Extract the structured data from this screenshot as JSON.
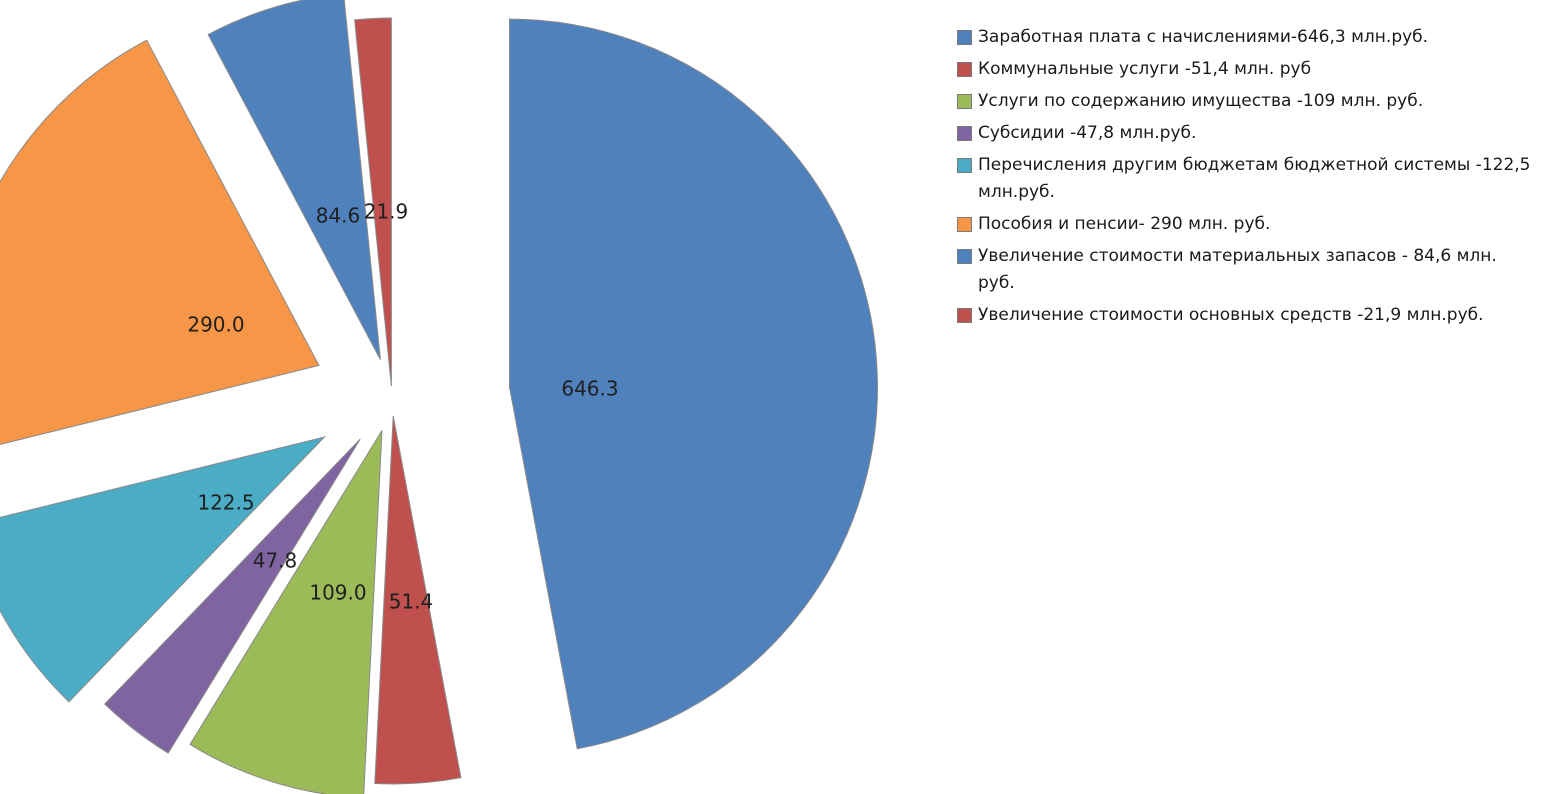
{
  "chart_data": {
    "type": "pie",
    "exploded": true,
    "legend_position": "right",
    "slices": [
      {
        "label": "Заработная плата с начислениями-646,3 млн.руб.",
        "value": 646.3,
        "data_label": "646.3",
        "color": "#4f81bd"
      },
      {
        "label": "Коммунальные услуги -51,4 млн. руб",
        "value": 51.4,
        "data_label": "51.4",
        "color": "#c0504d"
      },
      {
        "label": "Услуги по содержанию имущества -109 млн. руб.",
        "value": 109.0,
        "data_label": "109.0",
        "color": "#9bbb59"
      },
      {
        "label": "Субсидии  -47,8 млн.руб.",
        "value": 47.8,
        "data_label": "47.8",
        "color": "#8064a2"
      },
      {
        "label": "Перечисления другим бюджетам бюджетной системы -122,5 млн.руб.",
        "value": 122.5,
        "data_label": "122.5",
        "color": "#4bacc6"
      },
      {
        "label": "Пособия и пенсии- 290 млн. руб.",
        "value": 290.0,
        "data_label": "290.0",
        "color": "#f79646"
      },
      {
        "label": "Увеличение стоимости материальных запасов - 84,6 млн. руб.",
        "value": 84.6,
        "data_label": "84.6",
        "color": "#4f81bd"
      },
      {
        "label": "Увеличение стоимости основных средств -21,9 млн.руб.",
        "value": 21.9,
        "data_label": "21.9",
        "color": "#c0504d"
      }
    ]
  }
}
